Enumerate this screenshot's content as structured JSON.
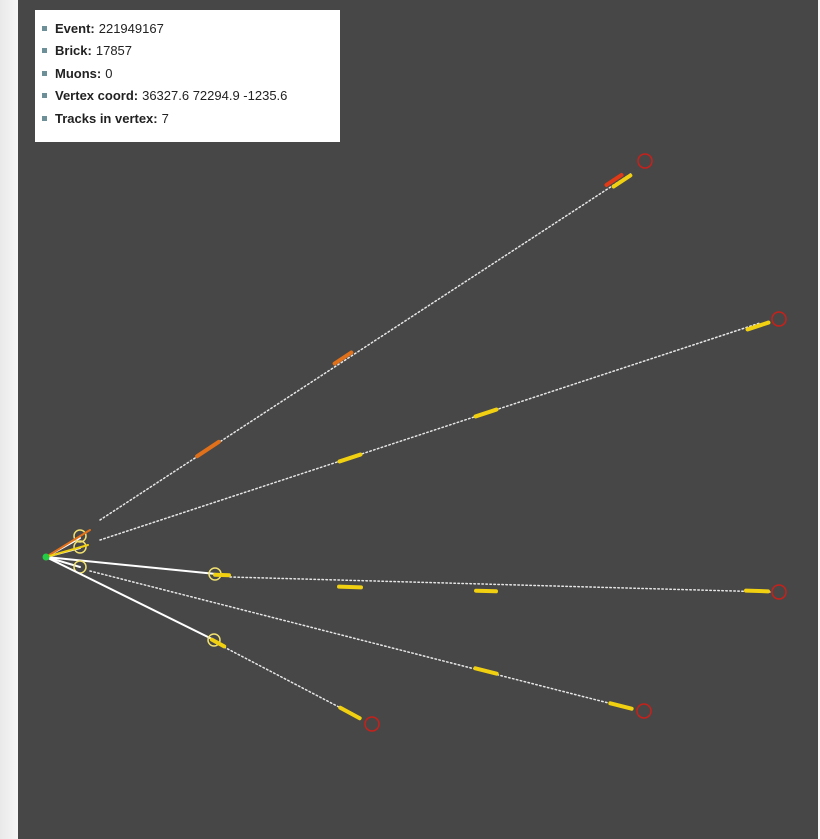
{
  "info": {
    "rows": [
      {
        "label": "Event:",
        "value": "221949167"
      },
      {
        "label": "Brick:",
        "value": "17857"
      },
      {
        "label": "Muons:",
        "value": "0"
      },
      {
        "label": "Vertex coord:",
        "value": "36327.6 72294.9 -1235.6"
      },
      {
        "label": "Tracks in vertex:",
        "value": "7"
      }
    ]
  },
  "colors": {
    "background": "#474747",
    "track_dotted": "#e6e6e6",
    "track_solid": "#ffffff",
    "segment_yellow": "#f0d010",
    "segment_orange": "#e0701a",
    "segment_red": "#e03a16",
    "endpoint_circle": "#c8201a",
    "vertex_circle": "#f0e070",
    "vertex_point": "#22cc44"
  }
}
